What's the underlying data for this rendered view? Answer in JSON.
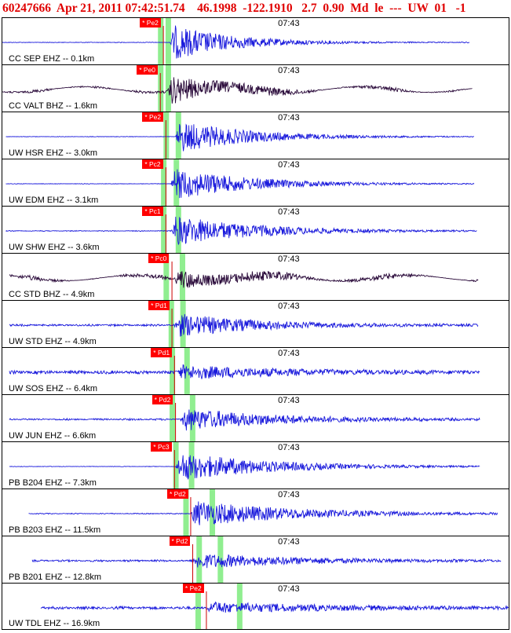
{
  "header": {
    "text": "60247666  Apr 21, 2011 07:42:51.74    46.1998  -122.1910   2.7  0.90  Md  le  ---  UW  01   -1"
  },
  "chart_data": {
    "type": "line",
    "title": "60247666  Apr 21, 2011 07:42:51.74    46.1998  -122.1910   2.7  0.90  Md  le  ---  UW  01   -1",
    "time_tick_label": "07:43",
    "colors": {
      "seismic": "#1a1adc",
      "broadband": "#2a0a3a",
      "pick_label_bg": "#ff0000",
      "pick_line": "#cc0000",
      "window": "#90ee90"
    },
    "traces": [
      {
        "station": "CC SEP EHZ -- 0.1km",
        "pick": "* Pe2",
        "color": "#1a1adc",
        "noise": 0.15,
        "onset": 0.331,
        "burst": 5.5,
        "pick_t": 0.318,
        "win1": 0.312,
        "win2": 0.327,
        "tick_t": 0.563,
        "start": 0.0,
        "end": 0.923,
        "decay": 0.12
      },
      {
        "station": "CC VALT BHZ -- 1.6km",
        "pick": "* Pe0",
        "color": "#2a0a3a",
        "noise": 0.1,
        "onset": 0.326,
        "burst": 4.5,
        "pick_t": 0.312,
        "win1": 0.312,
        "win2": 0.327,
        "tick_t": 0.563,
        "start": 0.0,
        "end": 0.928,
        "decay": 0.13
      },
      {
        "station": "UW HSR EHZ -- 3.0km",
        "pick": "* Pe2",
        "color": "#1a1adc",
        "noise": 0.12,
        "onset": 0.342,
        "burst": 5.0,
        "pick_t": 0.323,
        "win1": 0.323,
        "win2": 0.347,
        "tick_t": 0.563,
        "start": 0.007,
        "end": 0.932,
        "decay": 0.14
      },
      {
        "station": "UW EDM EHZ -- 3.1km",
        "pick": "* Pc2",
        "color": "#1a1adc",
        "noise": 0.12,
        "onset": 0.333,
        "burst": 5.0,
        "pick_t": 0.323,
        "win1": 0.318,
        "win2": 0.343,
        "tick_t": 0.563,
        "start": 0.007,
        "end": 0.932,
        "decay": 0.15
      },
      {
        "station": "UW SHW EHZ -- 3.6km",
        "pick": "* Pc1",
        "color": "#1a1adc",
        "noise": 0.18,
        "onset": 0.333,
        "burst": 4.8,
        "pick_t": 0.323,
        "win1": 0.318,
        "win2": 0.347,
        "tick_t": 0.563,
        "start": 0.007,
        "end": 0.938,
        "decay": 0.16
      },
      {
        "station": "CC STD BHZ -- 4.9km",
        "pick": "* Pc0",
        "color": "#2a0a3a",
        "noise": 0.45,
        "onset": 0.34,
        "burst": 3.0,
        "pick_t": 0.335,
        "win1": 0.323,
        "win2": 0.355,
        "tick_t": 0.563,
        "start": 0.014,
        "end": 0.94,
        "decay": 0.14
      },
      {
        "station": "UW STD EHZ -- 4.9km",
        "pick": "* Pd1",
        "color": "#1a1adc",
        "noise": 0.45,
        "onset": 0.34,
        "burst": 3.5,
        "pick_t": 0.335,
        "win1": 0.333,
        "win2": 0.356,
        "tick_t": 0.563,
        "start": 0.014,
        "end": 0.94,
        "decay": 0.16
      },
      {
        "station": "UW SOS EHZ -- 6.4km",
        "pick": "* Pd1",
        "color": "#1a1adc",
        "noise": 0.75,
        "onset": 0.345,
        "burst": 2.0,
        "pick_t": 0.34,
        "win1": 0.335,
        "win2": 0.364,
        "tick_t": 0.563,
        "start": 0.014,
        "end": 0.943,
        "decay": 0.2
      },
      {
        "station": "UW JUN EHZ -- 6.6km",
        "pick": "* Pd2",
        "color": "#1a1adc",
        "noise": 0.4,
        "onset": 0.352,
        "burst": 3.5,
        "pick_t": 0.342,
        "win1": 0.335,
        "win2": 0.375,
        "tick_t": 0.563,
        "start": 0.014,
        "end": 0.943,
        "decay": 0.18
      },
      {
        "station": "PB B204 EHZ -- 7.3km",
        "pick": "* Pc3",
        "color": "#1a1adc",
        "noise": 0.12,
        "onset": 0.343,
        "burst": 4.5,
        "pick_t": 0.34,
        "win1": 0.342,
        "win2": 0.373,
        "tick_t": 0.563,
        "start": 0.014,
        "end": 0.943,
        "decay": 0.18
      },
      {
        "station": "PB B203 EHZ -- 11.5km",
        "pick": "* Pd2",
        "color": "#1a1adc",
        "noise": 0.22,
        "onset": 0.372,
        "burst": 4.0,
        "pick_t": 0.372,
        "win1": 0.362,
        "win2": 0.414,
        "tick_t": 0.563,
        "start": 0.052,
        "end": 0.978,
        "decay": 0.2
      },
      {
        "station": "PB B201 EHZ -- 12.8km",
        "pick": "* Pd2",
        "color": "#1a1adc",
        "noise": 0.42,
        "onset": 0.376,
        "burst": 2.3,
        "pick_t": 0.376,
        "win1": 0.388,
        "win2": 0.43,
        "tick_t": 0.563,
        "start": 0.059,
        "end": 0.985,
        "decay": 0.2
      },
      {
        "station": "UW TDL EHZ -- 16.9km",
        "pick": "* Pe2",
        "color": "#1a1adc",
        "noise": 0.62,
        "onset": 0.403,
        "burst": 1.5,
        "pick_t": 0.403,
        "win1": 0.386,
        "win2": 0.468,
        "tick_t": 0.563,
        "start": 0.076,
        "end": 1.0,
        "decay": 0.25
      }
    ]
  }
}
